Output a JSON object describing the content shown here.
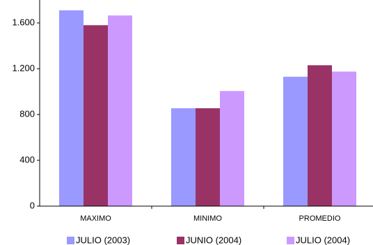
{
  "chart_data": {
    "type": "bar",
    "categories": [
      "MAXIMO",
      "MINIMO",
      "PROMEDIO"
    ],
    "series": [
      {
        "name": "JULIO (2003)",
        "color": "#9999ff",
        "values": [
          1710,
          855,
          1130
        ]
      },
      {
        "name": "JUNIO (2004)",
        "color": "#993366",
        "values": [
          1580,
          855,
          1230
        ]
      },
      {
        "name": "JULIO (2004)",
        "color": "#cc99ff",
        "values": [
          1665,
          1005,
          1175
        ]
      }
    ],
    "ylim": [
      0,
      1800
    ],
    "yticks": [
      0,
      400,
      800,
      {
        "value": 1200,
        "label": "1.200"
      },
      {
        "value": 1600,
        "label": "1.600"
      }
    ],
    "grid": false,
    "legend": "bottom"
  }
}
